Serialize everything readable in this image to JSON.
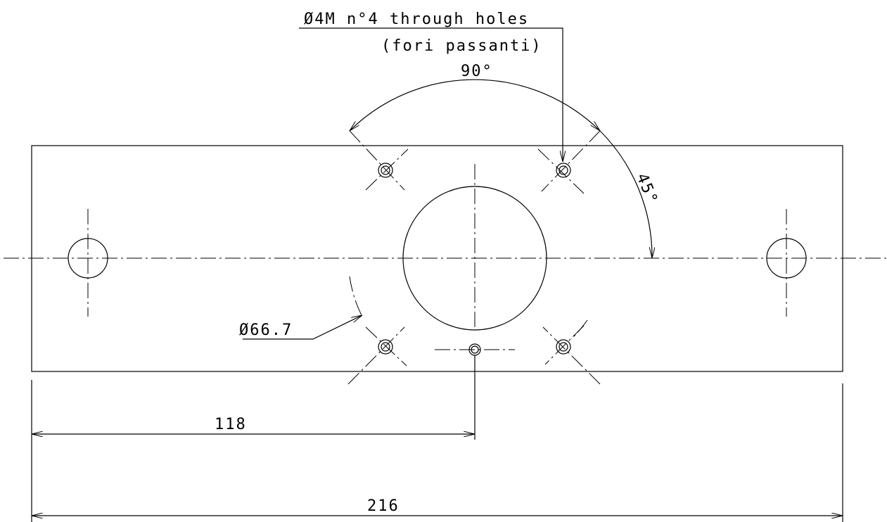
{
  "labels": {
    "holes": "Ø4M n°4 through holes",
    "holes_it": "(fori passanti)",
    "angle_90": "90°",
    "angle_45": "45°",
    "diameter": "Ø66.7",
    "dim_118": "118",
    "dim_216": "216"
  }
}
